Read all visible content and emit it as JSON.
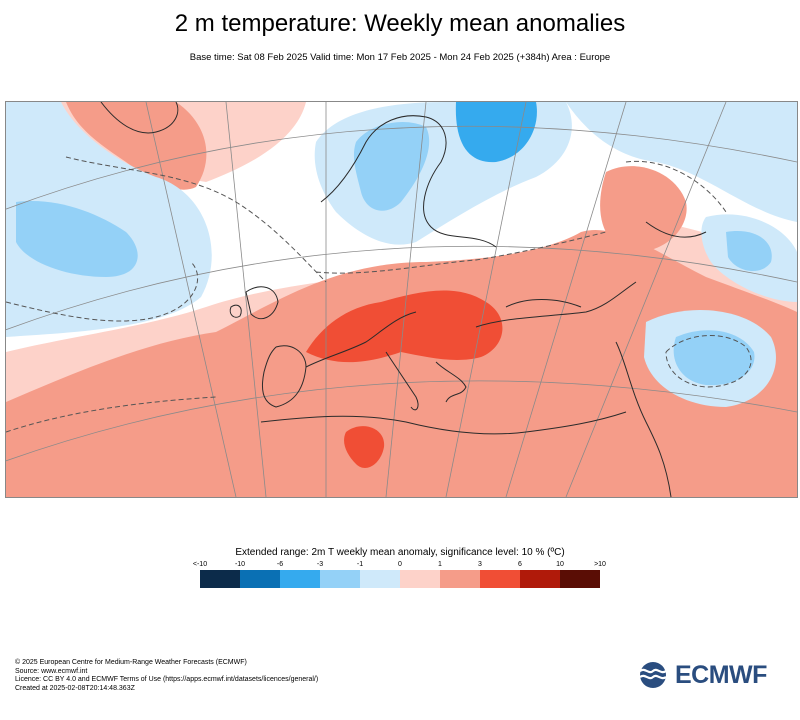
{
  "header": {
    "title": "2 m temperature: Weekly mean anomalies",
    "subtitle": "Base time: Sat 08 Feb 2025 Valid time: Mon 17 Feb 2025 - Mon 24 Feb 2025 (+384h) Area : Europe"
  },
  "legend": {
    "title": "Extended range: 2m T weekly mean anomaly, significance level: 10 % (ºC)",
    "ticks": [
      "<-10",
      "-10",
      "-6",
      "-3",
      "-1",
      "0",
      "1",
      "3",
      "6",
      "10",
      ">10"
    ],
    "colors": [
      "#0c2b4a",
      "#0a70b4",
      "#35aaee",
      "#94d1f7",
      "#cfe9fa",
      "#fdd2c9",
      "#f59c89",
      "#f04e35",
      "#b01a0a",
      "#5a0d05"
    ]
  },
  "map": {
    "area": "Europe",
    "colors": {
      "background": "#ffffff",
      "cold_light": "#cfe9fa",
      "cold_mid": "#94d1f7",
      "cold_strong": "#35aaee",
      "warm_light": "#fdd2c9",
      "warm_mid": "#f59c89",
      "warm_strong": "#f04e35",
      "coast": "#2b2b2b",
      "graticule": "#8a8a8a",
      "contour": "#555555"
    }
  },
  "footer": {
    "lines": [
      "© 2025 European Centre for Medium-Range Weather Forecasts (ECMWF)",
      "Source: www.ecmwf.int",
      "Licence: CC BY 4.0 and ECMWF Terms of Use (https://apps.ecmwf.int/datasets/licences/general/)",
      "Created at 2025-02-08T20:14:48.363Z"
    ]
  },
  "logo": {
    "text": "ECMWF",
    "color": "#2a4d7f"
  }
}
